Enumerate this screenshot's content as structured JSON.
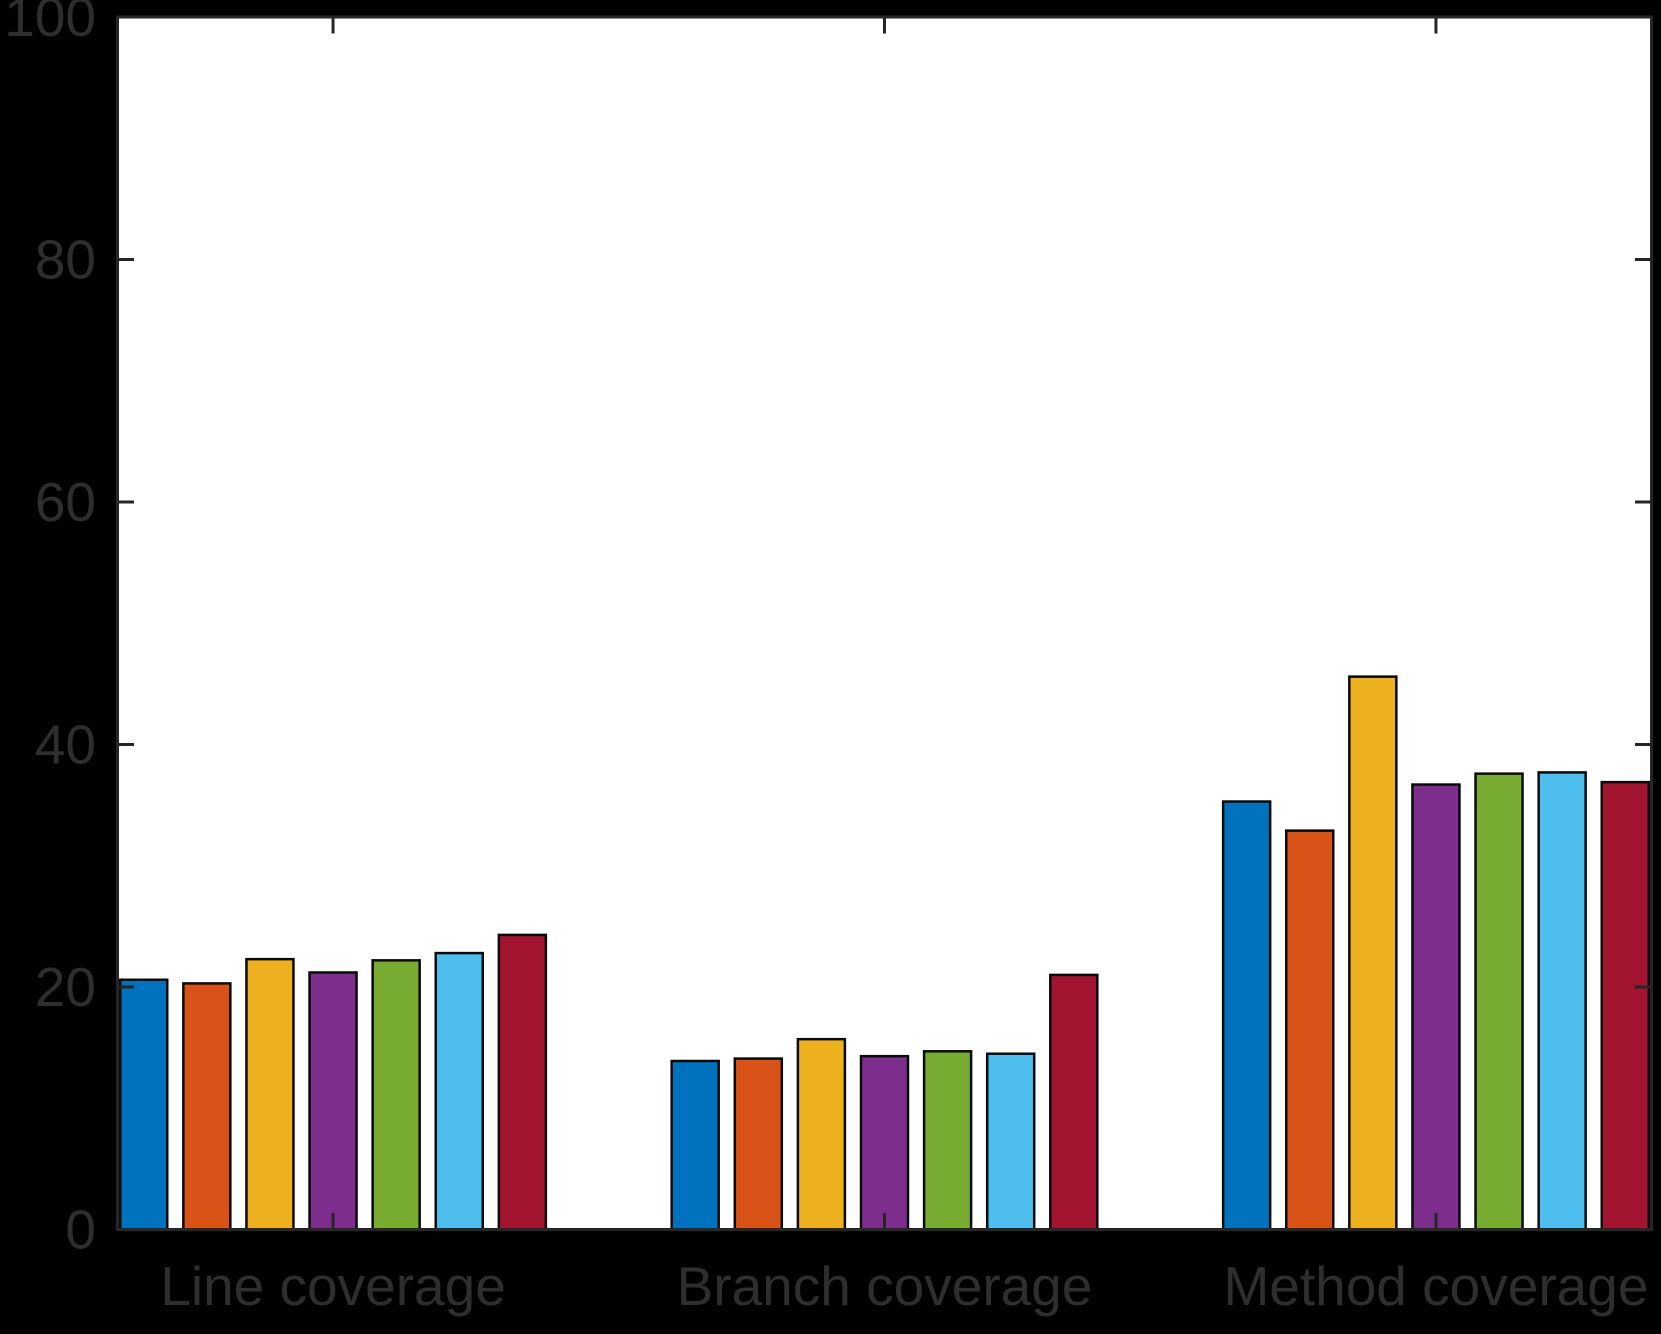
{
  "figure": {
    "background_color": "#000000",
    "plot_background_color": "#FFFFFF",
    "axis_color": "#262626",
    "bar_edge_color": "#0A0A0A",
    "text_color": "#2E2E2E"
  },
  "chart_data": {
    "type": "bar",
    "title": "",
    "xlabel": "",
    "ylabel": "",
    "categories": [
      "Line coverage",
      "Branch coverage",
      "Method coverage"
    ],
    "series": [
      {
        "name": "series-1-blue",
        "color": "#0072BD",
        "values": [
          20.7,
          14.0,
          35.4
        ]
      },
      {
        "name": "series-2-orange",
        "color": "#D95319",
        "values": [
          20.4,
          14.2,
          33.0
        ]
      },
      {
        "name": "series-3-yellow",
        "color": "#EDB120",
        "values": [
          22.4,
          15.8,
          45.7
        ]
      },
      {
        "name": "series-4-purple",
        "color": "#7E2F8E",
        "values": [
          21.3,
          14.4,
          36.8
        ]
      },
      {
        "name": "series-5-green",
        "color": "#77AC30",
        "values": [
          22.3,
          14.8,
          37.7
        ]
      },
      {
        "name": "series-6-light-blue",
        "color": "#4DBEEE",
        "values": [
          22.9,
          14.6,
          37.8
        ]
      },
      {
        "name": "series-7-dark-red",
        "color": "#A2142F",
        "values": [
          24.4,
          21.1,
          37.0
        ]
      }
    ],
    "ylim": [
      0,
      100
    ],
    "yticks": [
      0,
      20,
      40,
      60,
      80,
      100
    ],
    "grid": false,
    "legend": "none"
  }
}
